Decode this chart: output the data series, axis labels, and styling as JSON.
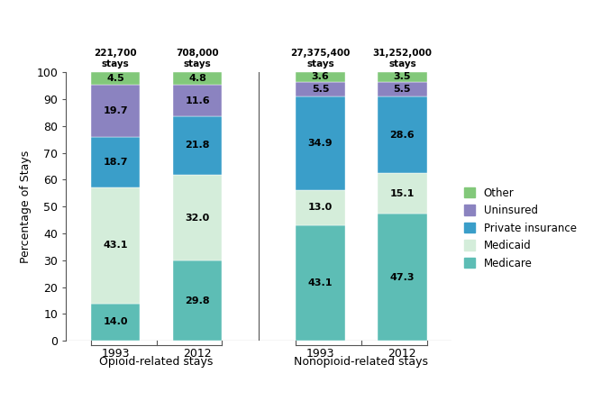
{
  "groups": [
    "Opioid-related stays",
    "Nonopioid-related stays"
  ],
  "years": [
    "1993",
    "2012"
  ],
  "subtitles": [
    "221,700\nstays",
    "708,000\nstays",
    "27,375,400\nstays",
    "31,252,000\nstays"
  ],
  "categories": [
    "Medicare",
    "Medicaid",
    "Private insurance",
    "Uninsured",
    "Other"
  ],
  "colors": [
    "#5dbdb5",
    "#d4edda",
    "#3a9ec9",
    "#8b83c0",
    "#82c87a"
  ],
  "data": {
    "Opioid_1993": [
      14.0,
      43.1,
      18.7,
      19.7,
      4.5
    ],
    "Opioid_2012": [
      29.8,
      32.0,
      21.8,
      11.6,
      4.8
    ],
    "Nonopioid_1993": [
      43.1,
      13.0,
      34.9,
      5.5,
      3.6
    ],
    "Nonopioid_2012": [
      47.3,
      15.1,
      28.6,
      5.5,
      3.5
    ]
  },
  "ylabel": "Percentage of Stays",
  "ylim": [
    0,
    100
  ],
  "bar_width": 0.6,
  "background_color": "#ffffff",
  "legend_labels": [
    "Other",
    "Uninsured",
    "Private insurance",
    "Medicaid",
    "Medicare"
  ],
  "legend_colors": [
    "#82c87a",
    "#8b83c0",
    "#3a9ec9",
    "#d4edda",
    "#5dbdb5"
  ]
}
